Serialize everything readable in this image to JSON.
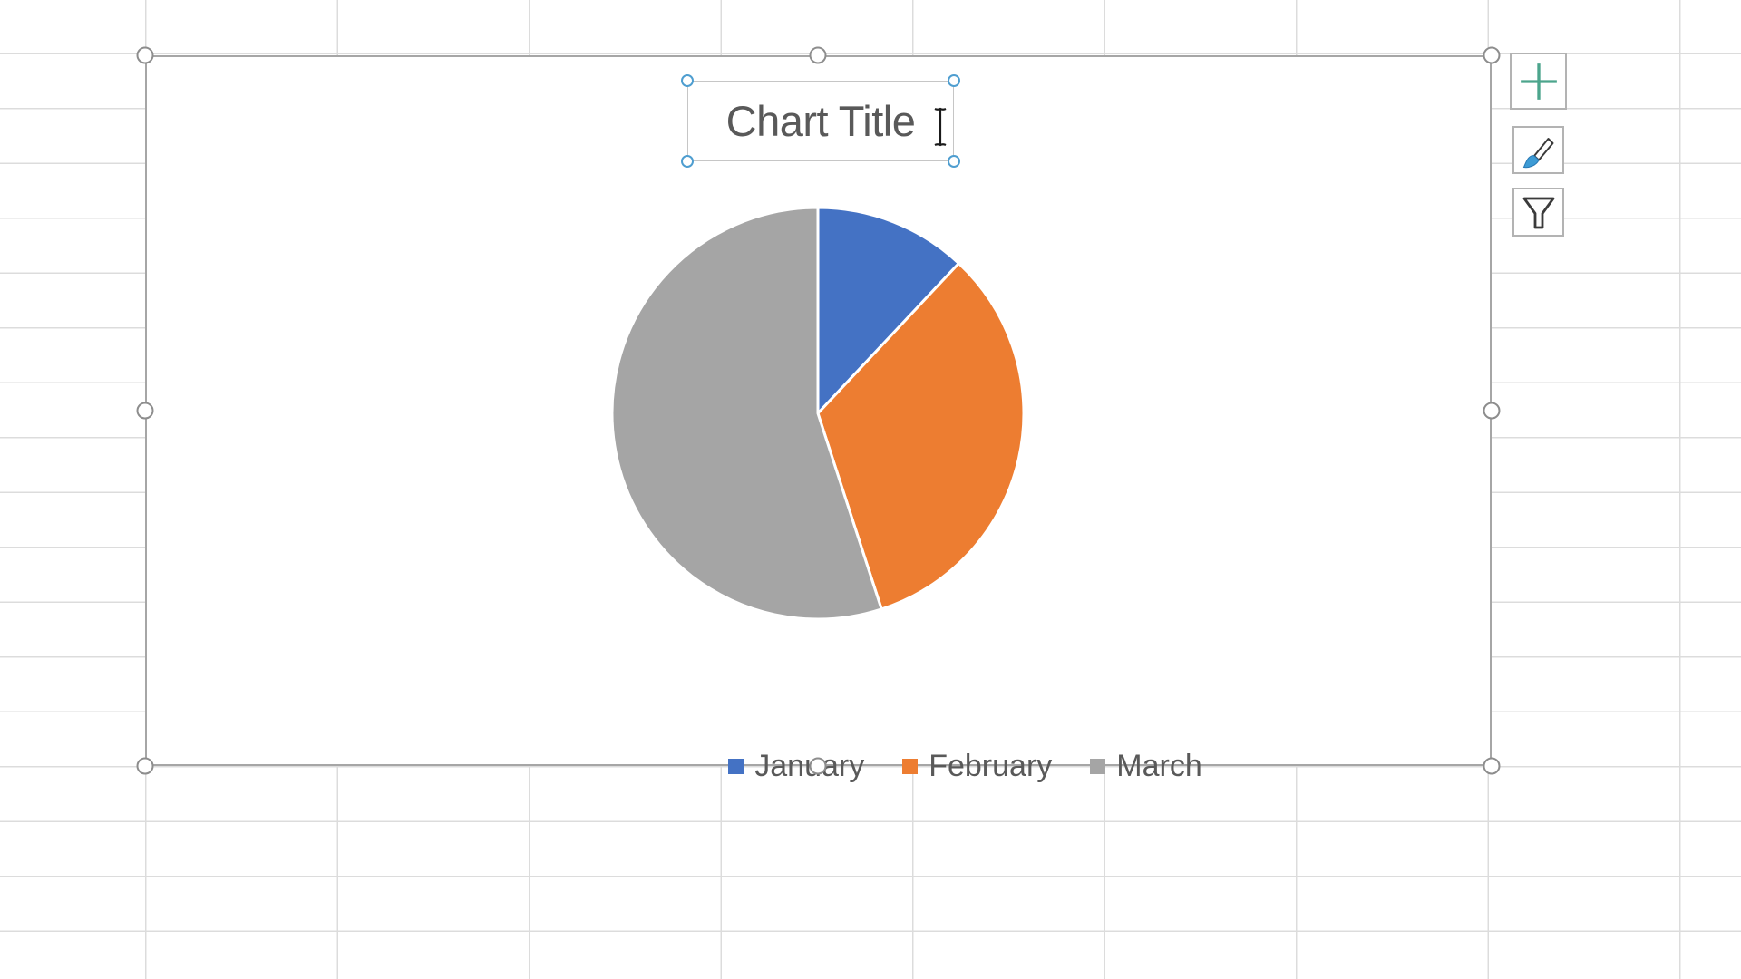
{
  "chart_data": {
    "type": "pie",
    "title": "Chart Title",
    "categories": [
      "January",
      "February",
      "March"
    ],
    "values": [
      12,
      33,
      55
    ],
    "value_unit": "percent, estimated from slice angles (≈43°, ≈118°, ≈199°)",
    "colors": [
      "#4472C4",
      "#ED7D31",
      "#A5A5A5"
    ],
    "slice_border_color": "#FFFFFF",
    "start_angle_deg": 0,
    "direction": "clockwise",
    "legend_position": "bottom",
    "data_labels": "none"
  },
  "chart": {
    "title": "Chart Title",
    "selected": true,
    "title_selected": true,
    "text_cursor_visible": true
  },
  "side_toolbar": {
    "buttons": [
      {
        "id": "chart-elements-button",
        "icon": "plus-icon"
      },
      {
        "id": "chart-styles-button",
        "icon": "paintbrush-icon"
      },
      {
        "id": "chart-filters-button",
        "icon": "funnel-icon"
      }
    ]
  },
  "colors": {
    "text": "#595959",
    "chart_border": "#a6a6a6",
    "handle_ring": "#8d8d8d",
    "title_handle_ring": "#4f9ed0",
    "gridline": "#dcdcdc",
    "plus_icon": "#4CA58C",
    "brush_tip": "#3D9BD5",
    "icon_outline": "#3a3a3a"
  }
}
